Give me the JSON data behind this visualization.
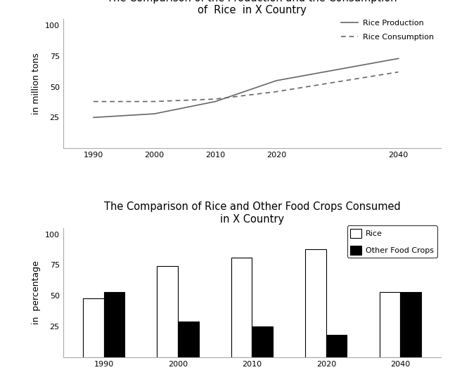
{
  "top_title_line1": "The Comparison of the Production and the Consumption",
  "top_title_line2": "of  Rice  in X Country",
  "bottom_title_line1": "The Comparison of Rice and Other Food Crops Consumed",
  "bottom_title_line2": "in X Country",
  "line_years": [
    1990,
    2000,
    2010,
    2020,
    2040
  ],
  "production": [
    25,
    28,
    38,
    55,
    73
  ],
  "consumption": [
    38,
    38,
    40,
    46,
    62
  ],
  "bar_years": [
    1990,
    2000,
    2010,
    2020,
    2040
  ],
  "rice_pct": [
    48,
    74,
    81,
    88,
    53
  ],
  "other_pct": [
    53,
    29,
    25,
    18,
    53
  ],
  "top_ylabel": "in million tons",
  "bottom_ylabel": "in  percentage",
  "line_color": "#666666",
  "bg_color": "#ffffff"
}
